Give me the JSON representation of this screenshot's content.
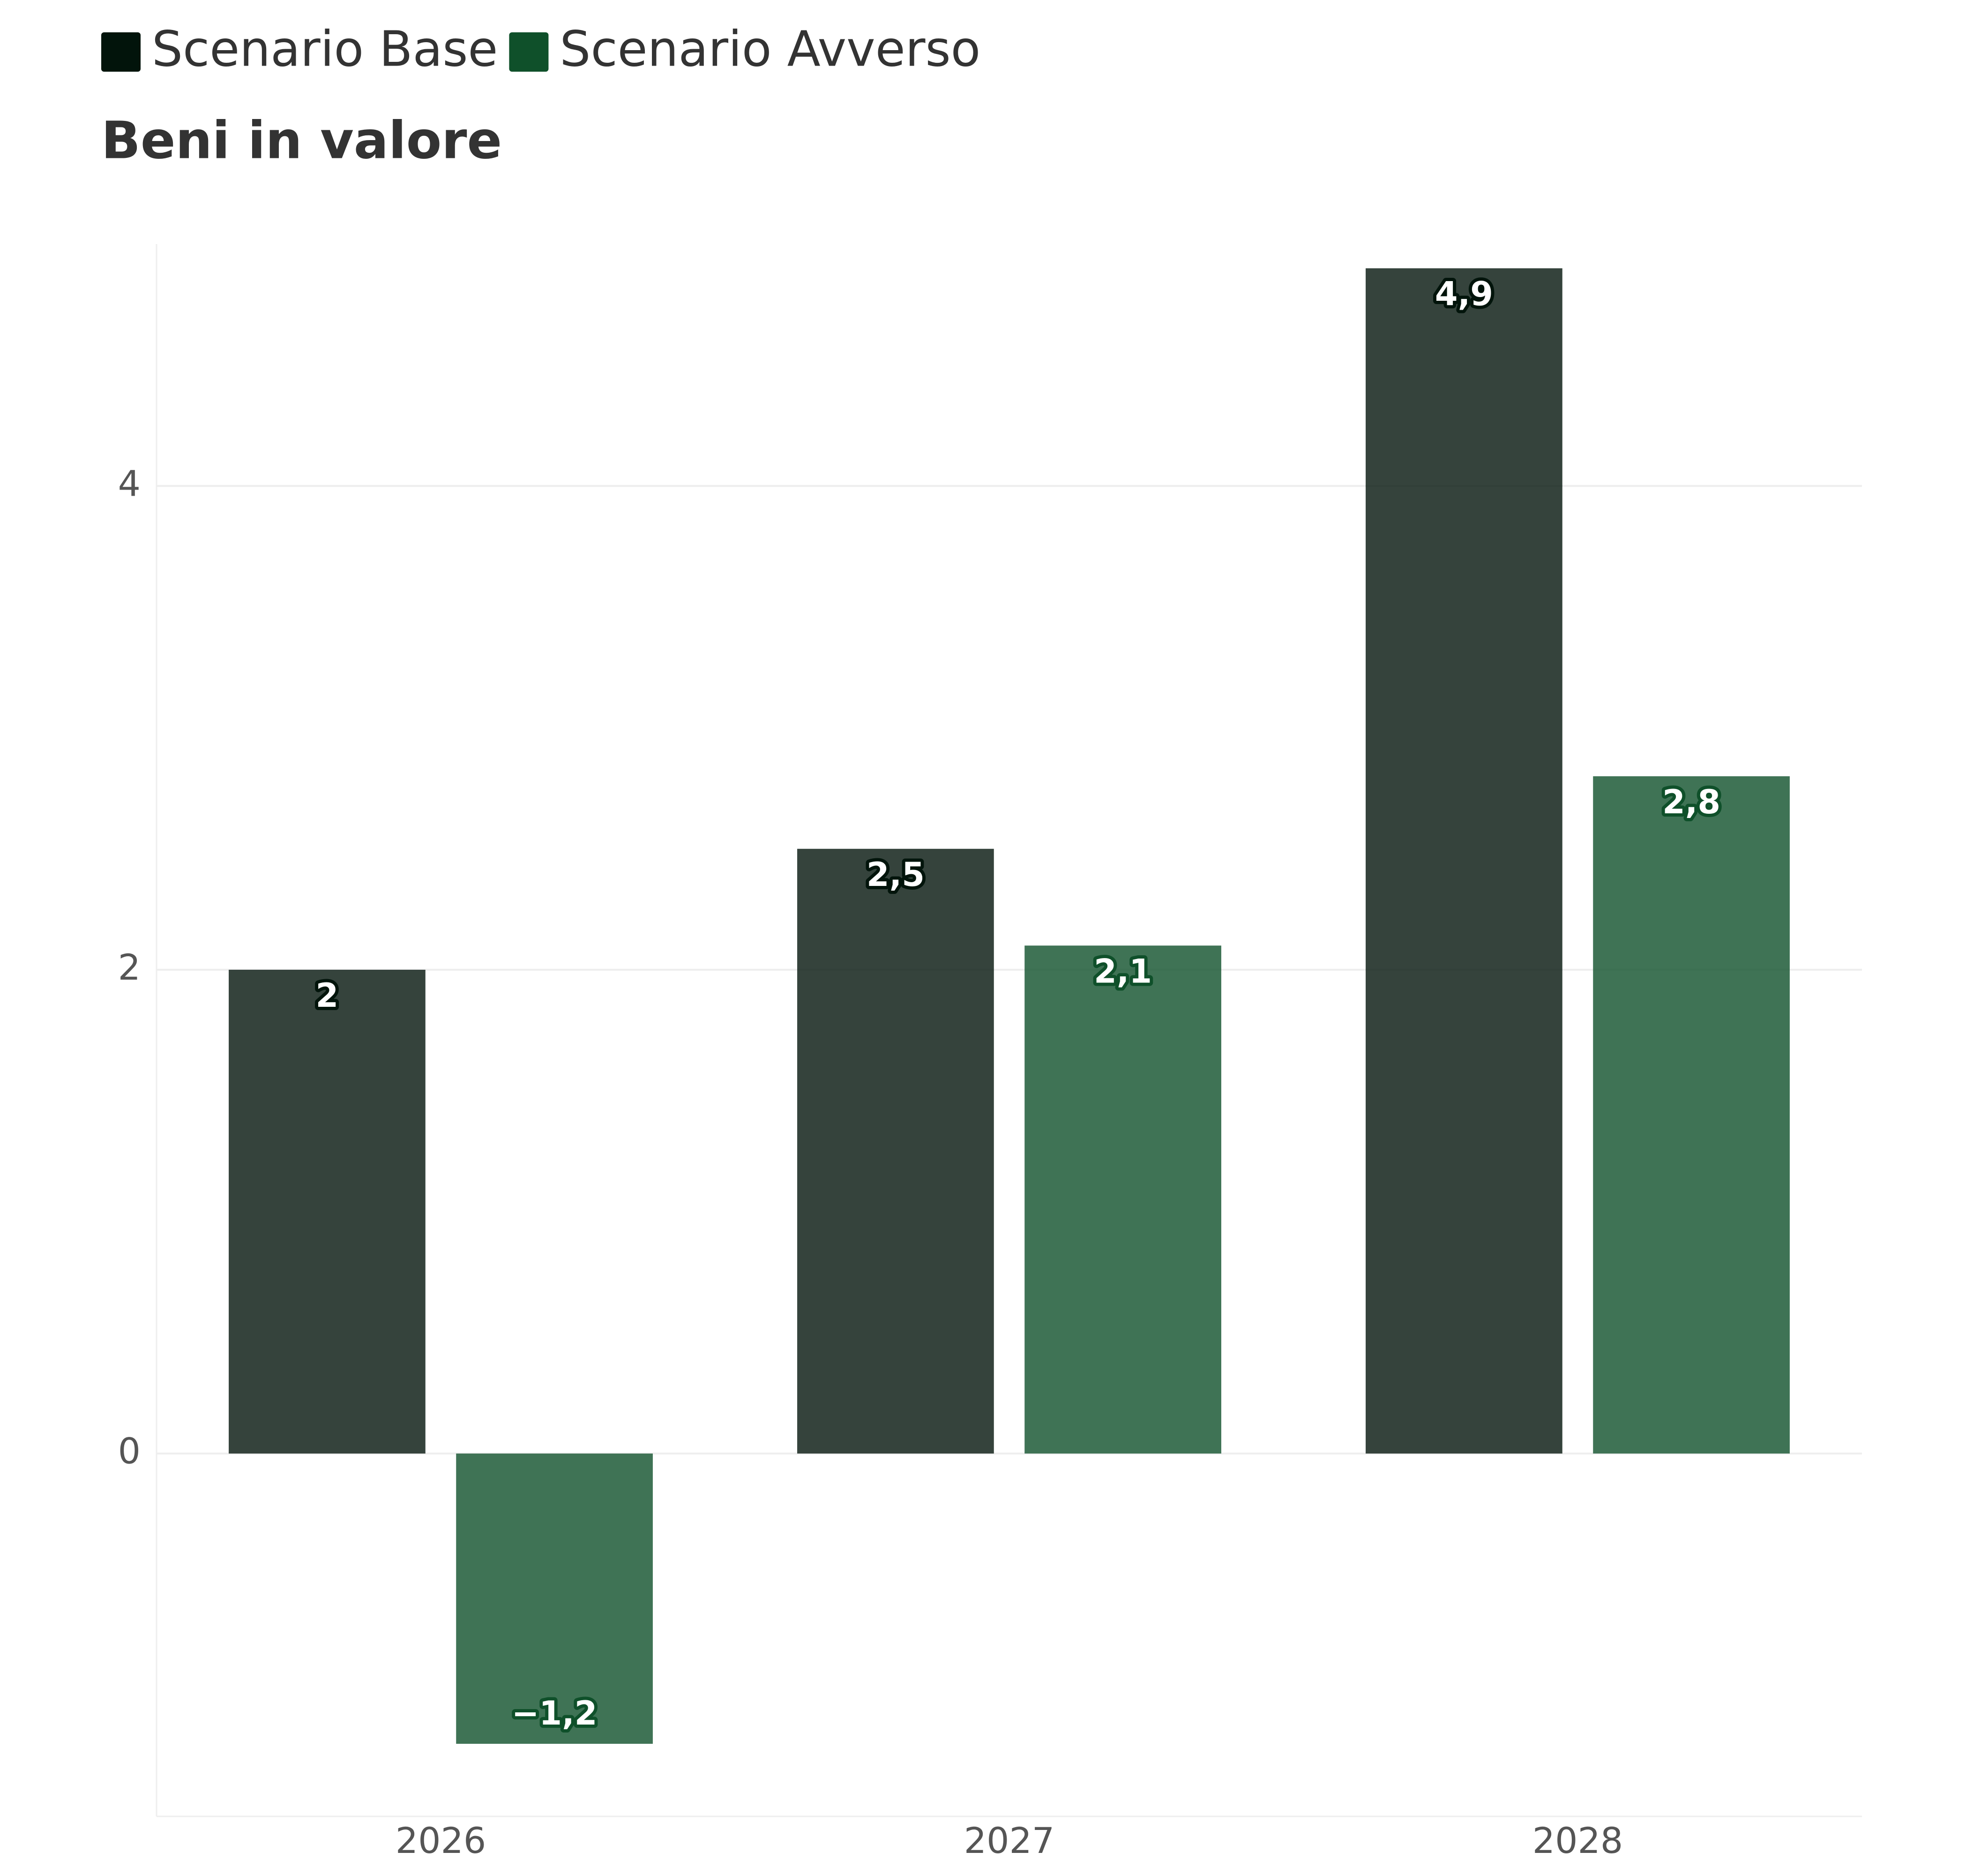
{
  "chart_data": {
    "type": "bar",
    "title": "Beni in valore",
    "categories": [
      "2026",
      "2027",
      "2028"
    ],
    "series": [
      {
        "name": "Scenario Base",
        "color": "#02140b",
        "values": [
          2,
          2.5,
          4.9
        ],
        "value_labels": [
          "2",
          "2,5",
          "4,9"
        ]
      },
      {
        "name": "Scenario Avverso",
        "color": "#0f502a",
        "values": [
          -1.2,
          2.1,
          2.8
        ],
        "value_labels": [
          "−1,2",
          "2,1",
          "2,8"
        ]
      }
    ],
    "ylim": [
      -1.5,
      5
    ],
    "yticks": [
      0,
      2,
      4
    ],
    "grid": true,
    "legend": "top-left"
  }
}
